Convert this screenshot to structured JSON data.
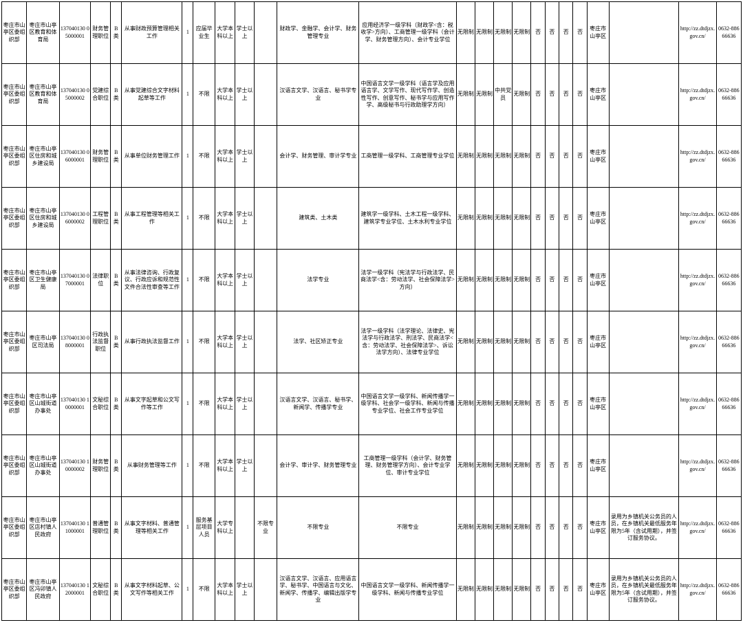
{
  "columns": [
    {
      "cls": "c0"
    },
    {
      "cls": "c1"
    },
    {
      "cls": "c2"
    },
    {
      "cls": "c3"
    },
    {
      "cls": "c4"
    },
    {
      "cls": "c5"
    },
    {
      "cls": "c6"
    },
    {
      "cls": "c7"
    },
    {
      "cls": "c8"
    },
    {
      "cls": "c9"
    },
    {
      "cls": "c10"
    },
    {
      "cls": "c11"
    },
    {
      "cls": "c12"
    },
    {
      "cls": "c13"
    },
    {
      "cls": "c14"
    },
    {
      "cls": "c15"
    },
    {
      "cls": "c16"
    },
    {
      "cls": "c17"
    },
    {
      "cls": "c18"
    },
    {
      "cls": "c19"
    },
    {
      "cls": "c20"
    },
    {
      "cls": "c21"
    },
    {
      "cls": "c22"
    },
    {
      "cls": "c23"
    },
    {
      "cls": "c24"
    }
  ],
  "rows": [
    [
      "枣庄市山亭区委组织部",
      "枣庄市山亭区教育和体育局",
      "137040130 05000001",
      "财务管理职位",
      "B类",
      "从事财政预算管理相关工作",
      "1",
      "应届毕业生",
      "大学本科以上",
      "学士以上",
      "",
      "财政学、金融学、会计学、财务管理专业",
      "应用经济学一级学科（财政学<含：税收学>方向）、工商管理一级学科（会计学、财务管理方向）、会计专业学位",
      "无限制",
      "无限制",
      "无限制",
      "无限制",
      "否",
      "否",
      "否",
      "否",
      "枣庄市山亭区",
      "",
      "http://zz.dtdjzx.gov.cn/",
      "0632-88666636"
    ],
    [
      "枣庄市山亭区委组织部",
      "枣庄市山亭区教育和体育局",
      "137040130 05000002",
      "党建综合职位",
      "B类",
      "从事党建综合文字材料起草等工作",
      "1",
      "不限",
      "大学本科以上",
      "学士以上",
      "",
      "汉语言文学、汉语言、秘书学专业",
      "中国语言文学一级学科（语言学及应用语言学、文学写作、现代写作学、创造性写作、创意写作、秘书学与应用写作学、高级秘书与行政助理学方向）",
      "无限制",
      "无限制",
      "中共党员",
      "无限制",
      "否",
      "否",
      "否",
      "否",
      "枣庄市山亭区",
      "",
      "http://zz.dtdjzx.gov.cn/",
      "0632-88666636"
    ],
    [
      "枣庄市山亭区委组织部",
      "枣庄市山亭区住房和城乡建设局",
      "137040130 06000001",
      "财务管理职位",
      "B类",
      "从事单位财务管理工作",
      "1",
      "不限",
      "大学本科以上",
      "学士以上",
      "",
      "会计学、财务管理、审计学专业",
      "工商管理一级学科、工商管理专业学位",
      "无限制",
      "无限制",
      "无限制",
      "无限制",
      "否",
      "否",
      "否",
      "否",
      "枣庄市山亭区",
      "",
      "http://zz.dtdjzx.gov.cn/",
      "0632-88666636"
    ],
    [
      "枣庄市山亭区委组织部",
      "枣庄市山亭区住房和城乡建设局",
      "137040130 06000002",
      "工程管理职位",
      "B类",
      "从事工程管理等相关工作",
      "1",
      "不限",
      "大学本科以上",
      "学士以上",
      "",
      "建筑类、土木类",
      "建筑学一级学科、土木工程一级学科、建筑学专业学位、土木水利专业学位",
      "无限制",
      "无限制",
      "无限制",
      "无限制",
      "否",
      "否",
      "否",
      "否",
      "枣庄市山亭区",
      "",
      "http://zz.dtdjzx.gov.cn/",
      "0632-88666636"
    ],
    [
      "枣庄市山亭区委组织部",
      "枣庄市山亭区卫生健康局",
      "137040130 07000001",
      "法律职位",
      "B类",
      "从事法律咨询、行政复议、行政应诉和规范性文件合法性审查等工作",
      "1",
      "不限",
      "大学本科以上",
      "学士以上",
      "",
      "法学专业",
      "法学一级学科（宪法学与行政法学、民商法学<含：劳动法学、社会保障法学>方向）",
      "无限制",
      "无限制",
      "无限制",
      "无限制",
      "否",
      "否",
      "否",
      "否",
      "枣庄市山亭区",
      "",
      "http://zz.dtdjzx.gov.cn/",
      "0632-88666636"
    ],
    [
      "枣庄市山亭区委组织部",
      "枣庄市山亭区司法局",
      "137040130 08000001",
      "行政执法监督职位",
      "B类",
      "从事行政执法监督工作",
      "1",
      "不限",
      "大学本科以上",
      "学士以上",
      "",
      "法学、社区矫正专业",
      "法学一级学科（法学理论、法律史、宪法学与行政法学、刑法学、民商法学<含：劳动法学、社会保障法学>、诉讼法学方向）、法律专业学位",
      "无限制",
      "无限制",
      "无限制",
      "无限制",
      "否",
      "否",
      "否",
      "否",
      "枣庄市山亭区",
      "",
      "http://zz.dtdjzx.gov.cn/",
      "0632-88666636"
    ],
    [
      "枣庄市山亭区委组织部",
      "枣庄市山亭区山城街道办事处",
      "137040130 10000001",
      "文秘综合职位",
      "B类",
      "从事文字起草和公文写作等工作",
      "1",
      "不限",
      "大学本科以上",
      "学士以上",
      "",
      "汉语言文学、汉语言、秘书学、新闻学、传播学专业",
      "中国语言文学一级学科、新闻传播学一级学科、社会学一级学科、新闻与传播专业学位、社会工作专业学位",
      "无限制",
      "无限制",
      "无限制",
      "无限制",
      "否",
      "否",
      "否",
      "否",
      "枣庄市山亭区",
      "",
      "http://zz.dtdjzx.gov.cn/",
      "0632-88666636"
    ],
    [
      "枣庄市山亭区委组织部",
      "枣庄市山亭区山城街道办事处",
      "137040130 10000002",
      "财务管理职位",
      "B类",
      "从事财务管理等工作",
      "1",
      "不限",
      "大学本科以上",
      "学士以上",
      "",
      "会计学、审计学、财务管理专业",
      "工商管理一级学科（会计学、财务管理、财务管理学方向）、会计专业学位、审计专业学位",
      "无限制",
      "无限制",
      "无限制",
      "无限制",
      "否",
      "否",
      "否",
      "否",
      "枣庄市山亭区",
      "",
      "http://zz.dtdjzx.gov.cn/",
      "0632-88666636"
    ],
    [
      "枣庄市山亭区委组织部",
      "枣庄市山亭区店村镇人民政府",
      "137040130 11000001",
      "普通管理职位",
      "B类",
      "从事文字材料、普通管理等相关工作",
      "1",
      "服务基层项目人员",
      "大学专科以上",
      "",
      "不限专业",
      "不限专业",
      "不限专业",
      "无限制",
      "无限制",
      "无限制",
      "无限制",
      "否",
      "否",
      "否",
      "否",
      "枣庄市山亭区",
      "录用为乡镇机关公务员的人员，在乡镇机关最低服务年限为5年（含试用期），并签订服务协议。",
      "http://zz.dtdjzx.gov.cn/",
      "0632-88666636"
    ],
    [
      "枣庄市山亭区委组织部",
      "枣庄市山亭区冯卯镇人民政府",
      "137040130 12000001",
      "文秘综合职位",
      "B类",
      "从事文字材料起草、公文写作等相关工作",
      "1",
      "不限",
      "大学本科以上",
      "学士以上",
      "",
      "汉语言文学、汉语言、应用语言学、秘书学、中国语言与文化、新闻学、传播学、编辑出版学专业",
      "中国语言文学一级学科、新闻传播学一级学科、新闻与传播专业学位",
      "无限制",
      "无限制",
      "无限制",
      "无限制",
      "否",
      "否",
      "否",
      "否",
      "枣庄市山亭区",
      "录用为乡镇机关公务员的人员，在乡镇机关最低服务年限为5年（含试用期），并签订服务协议。",
      "http://zz.dtdjzx.gov.cn/",
      "0632-88666636"
    ]
  ]
}
